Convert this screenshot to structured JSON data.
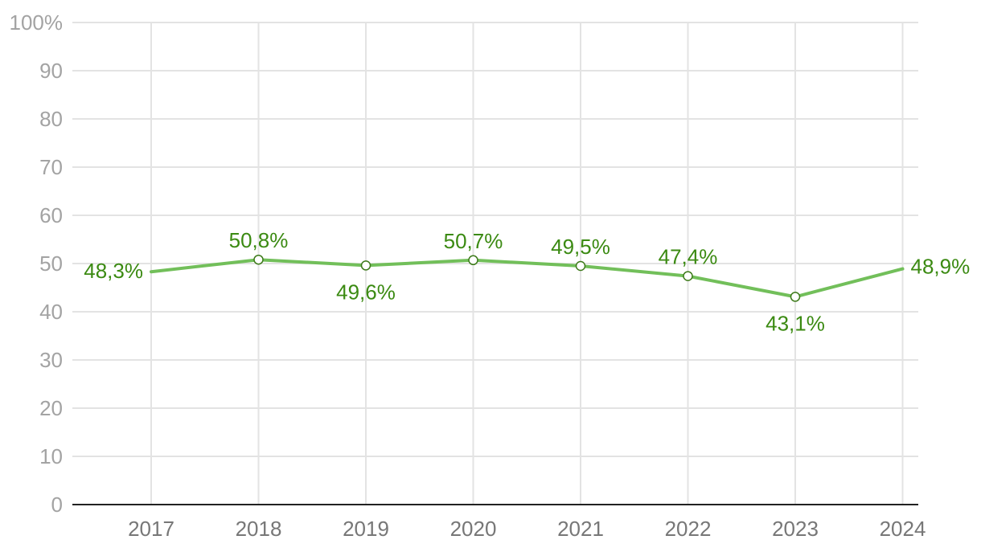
{
  "colors": {
    "line": "#72bf5a",
    "marker_stroke": "#3d7a1a",
    "label": "#3b8a12",
    "grid": "#e3e3e3",
    "axis": "#222222",
    "y_tick_text": "#a3a3a3",
    "x_tick_text": "#777777"
  },
  "chart_data": {
    "type": "line",
    "title": "",
    "xlabel": "",
    "ylabel": "",
    "categories": [
      "2017",
      "2018",
      "2019",
      "2020",
      "2021",
      "2022",
      "2023",
      "2024"
    ],
    "series": [
      {
        "values": [
          48.3,
          50.8,
          49.6,
          50.7,
          49.5,
          47.4,
          43.1,
          48.9
        ],
        "labels": [
          "48,3%",
          "50,8%",
          "49,6%",
          "50,7%",
          "49,5%",
          "47,4%",
          "43,1%",
          "48,9%"
        ],
        "label_placement": [
          "left",
          "above",
          "below",
          "above",
          "above",
          "above",
          "below",
          "right"
        ],
        "markers": [
          false,
          true,
          true,
          true,
          true,
          true,
          true,
          false
        ]
      }
    ],
    "ylim": [
      0,
      100
    ],
    "y_ticks": [
      0,
      10,
      20,
      30,
      40,
      50,
      60,
      70,
      80,
      90,
      100
    ],
    "y_tick_labels": [
      "0",
      "10",
      "20",
      "30",
      "40",
      "50",
      "60",
      "70",
      "80",
      "90",
      "100%"
    ],
    "grid": true,
    "legend": "none"
  }
}
